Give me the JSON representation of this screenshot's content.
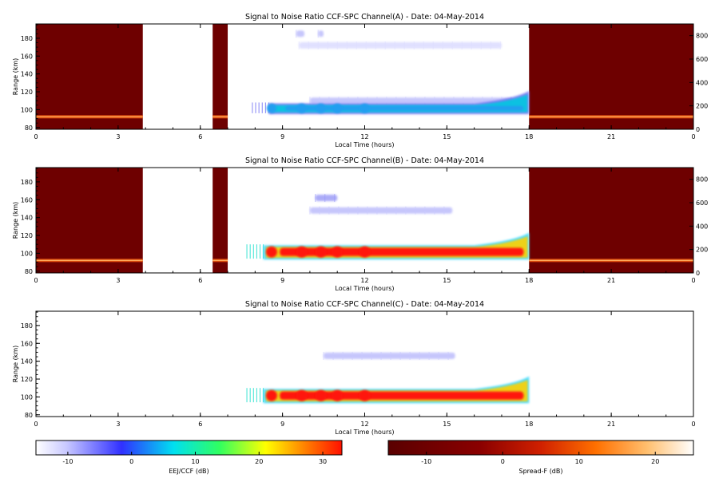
{
  "colors": {
    "eej_fill": "#ff3a10",
    "spreadf_fill": "#6e0000",
    "fringe_cyan": "#00d8e8",
    "blue_echo": "#3a3ae8"
  },
  "chart_data": [
    {
      "type": "heatmap",
      "title": "Signal to Noise Ratio CCF-SPC Channel(A) - Date: 04-May-2014",
      "xlabel": "Local Time (hours)",
      "ylabel": "Range (km)",
      "x_ticks": [
        "0",
        "3",
        "6",
        "9",
        "12",
        "15",
        "18",
        "21",
        "0"
      ],
      "y_ticks": [
        "80",
        "100",
        "120",
        "140",
        "160",
        "180"
      ],
      "y2_ticks": [
        "0",
        "200",
        "400",
        "600",
        "800"
      ],
      "xlim": [
        0,
        24
      ],
      "ylim": [
        78,
        196
      ],
      "y2lim": [
        0,
        900
      ],
      "spread_f_intervals": [
        [
          0,
          3.9
        ],
        [
          6.45,
          7.0
        ],
        [
          18,
          24
        ]
      ],
      "spread_f_layer_range_km": 92,
      "eej_echo": {
        "time_range": [
          8.5,
          18.0
        ],
        "range_core_km": [
          99,
          104
        ],
        "peak_snr_db": -2,
        "upper_echoes": [
          {
            "time_range": [
              10,
              17.4
            ],
            "range_km": 110,
            "snr_db": -8
          },
          {
            "time_range": [
              9.6,
              17.0
            ],
            "range_km": 172,
            "snr_db": -10
          },
          {
            "time_range": [
              9.5,
              9.8
            ],
            "range_km": 185,
            "snr_db": -8
          },
          {
            "time_range": [
              10.3,
              10.5
            ],
            "range_km": 185,
            "snr_db": -8
          }
        ]
      }
    },
    {
      "type": "heatmap",
      "title": "Signal to Noise Ratio CCF-SPC Channel(B) - Date: 04-May-2014",
      "xlabel": "Local Time (hours)",
      "ylabel": "Range (km)",
      "x_ticks": [
        "0",
        "3",
        "6",
        "9",
        "12",
        "15",
        "18",
        "21",
        "0"
      ],
      "y_ticks": [
        "80",
        "100",
        "120",
        "140",
        "160",
        "180"
      ],
      "y2_ticks": [
        "0",
        "200",
        "400",
        "600",
        "800"
      ],
      "xlim": [
        0,
        24
      ],
      "ylim": [
        78,
        196
      ],
      "y2lim": [
        0,
        900
      ],
      "spread_f_intervals": [
        [
          0,
          3.9
        ],
        [
          6.45,
          7.0
        ],
        [
          18,
          24
        ]
      ],
      "spread_f_layer_range_km": 92,
      "eej_echo": {
        "time_range": [
          8.3,
          18.0
        ],
        "range_core_km": [
          97,
          106
        ],
        "peak_snr_db": 30,
        "upper_echoes": [
          {
            "time_range": [
              10,
              15.2
            ],
            "range_km": 148,
            "snr_db": -8
          },
          {
            "time_range": [
              10.2,
              11.0
            ],
            "range_km": 162,
            "snr_db": -6
          }
        ]
      }
    },
    {
      "type": "heatmap",
      "title": "Signal to Noise Ratio CCF-SPC Channel(C) - Date: 04-May-2014",
      "xlabel": "Local Time (hours)",
      "ylabel": "Range (km)",
      "x_ticks": [
        "0",
        "3",
        "6",
        "9",
        "12",
        "15",
        "18",
        "21",
        "0"
      ],
      "y_ticks": [
        "80",
        "100",
        "120",
        "140",
        "160",
        "180"
      ],
      "xlim": [
        0,
        24
      ],
      "ylim": [
        78,
        196
      ],
      "spread_f_intervals": [],
      "eej_echo": {
        "time_range": [
          8.3,
          18.0
        ],
        "range_core_km": [
          97,
          106
        ],
        "peak_snr_db": 30,
        "upper_echoes": [
          {
            "time_range": [
              10.5,
              15.3
            ],
            "range_km": 146,
            "snr_db": -8
          }
        ]
      }
    }
  ],
  "colorbars": [
    {
      "label": "EEJ/CCF (dB)",
      "ticks": [
        "-10",
        "0",
        "10",
        "20",
        "30"
      ],
      "range": [
        -15,
        33
      ],
      "palette": "rainbow"
    },
    {
      "label": "Spread-F (dB)",
      "ticks": [
        "-10",
        "0",
        "10",
        "20"
      ],
      "range": [
        -15,
        25
      ],
      "palette": "heat"
    }
  ]
}
